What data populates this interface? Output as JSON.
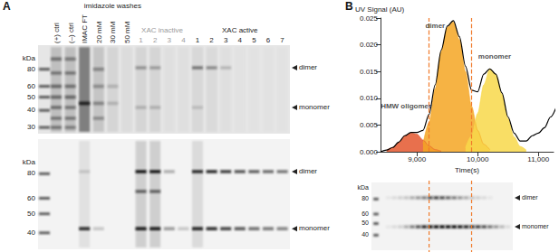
{
  "panels": [
    "A",
    "B"
  ],
  "gel_A": {
    "kDa_label": "kDa",
    "lanes": [
      "(+) ctrl",
      "(–) ctrl",
      "IMAC FT",
      "20 mM",
      "30 mM",
      "50 mM",
      "1",
      "2",
      "3",
      "4",
      "1",
      "2",
      "3",
      "4",
      "5",
      "6",
      "7"
    ],
    "groups": [
      {
        "label": "imidazole washes",
        "from": 3,
        "to": 5
      },
      {
        "label": "XAC inactive",
        "from": 6,
        "to": 9,
        "color": "#9a9a9a"
      },
      {
        "label": "XAC active",
        "from": 10,
        "to": 16
      }
    ],
    "blots": [
      {
        "kDa_range": [
          120,
          27
        ],
        "markers": [
          80,
          60,
          50,
          40,
          30
        ],
        "arrows": [
          {
            "kDa": 82,
            "label": "dimer"
          },
          {
            "kDa": 42,
            "label": "monomer"
          }
        ],
        "lanes": [
          {
            "smear": 0.35,
            "bands": [
              [
                95,
                0.5
              ],
              [
                75,
                0.45
              ],
              [
                60,
                0.55
              ],
              [
                50,
                0.55
              ],
              [
                42,
                0.5
              ],
              [
                35,
                0.45
              ],
              [
                30,
                0.45
              ]
            ]
          },
          {
            "smear": 0.35,
            "bands": [
              [
                95,
                0.45
              ],
              [
                75,
                0.45
              ],
              [
                60,
                0.5
              ],
              [
                50,
                0.55
              ],
              [
                42,
                0.45
              ],
              [
                35,
                0.45
              ],
              [
                30,
                0.4
              ]
            ]
          },
          {
            "smear": 0.95,
            "bands": [
              [
                45,
                1
              ]
            ]
          },
          {
            "smear": 0.3,
            "bands": [
              [
                80,
                0.4
              ],
              [
                60,
                0.35
              ],
              [
                45,
                0.4
              ],
              [
                35,
                0.35
              ]
            ]
          },
          {
            "smear": 0.15,
            "bands": [
              [
                60,
                0.2
              ],
              [
                45,
                0.2
              ]
            ]
          },
          {
            "smear": 0.08,
            "bands": []
          },
          {
            "smear": 0.15,
            "bands": [
              [
                82,
                0.35
              ],
              [
                42,
                0.2
              ]
            ]
          },
          {
            "smear": 0.15,
            "bands": [
              [
                82,
                0.3
              ],
              [
                42,
                0.2
              ]
            ]
          },
          {
            "smear": 0.05,
            "bands": []
          },
          {
            "smear": 0.05,
            "bands": []
          },
          {
            "smear": 0.12,
            "bands": [
              [
                82,
                0.5
              ],
              [
                42,
                0.15
              ]
            ]
          },
          {
            "smear": 0.1,
            "bands": [
              [
                82,
                0.4
              ]
            ]
          },
          {
            "smear": 0.05,
            "bands": [
              [
                82,
                0.2
              ]
            ]
          },
          {
            "smear": 0.03,
            "bands": []
          },
          {
            "smear": 0.02,
            "bands": []
          },
          {
            "smear": 0.02,
            "bands": []
          },
          {
            "smear": 0.02,
            "bands": []
          }
        ]
      },
      {
        "kDa_range": [
          120,
          33
        ],
        "markers": [
          80,
          60,
          50,
          40
        ],
        "arrows": [
          {
            "kDa": 82,
            "label": "dimer"
          },
          {
            "kDa": 42,
            "label": "monomer"
          }
        ],
        "lanes": [
          {
            "bands": []
          },
          {
            "bands": []
          },
          {
            "smear": 0.15,
            "bands": [
              [
                82,
                0.15
              ],
              [
                42,
                0.9
              ]
            ]
          },
          {
            "bands": [
              [
                42,
                0.2
              ]
            ]
          },
          {
            "bands": []
          },
          {
            "bands": []
          },
          {
            "smear": 0.3,
            "bands": [
              [
                82,
                1
              ],
              [
                65,
                0.6
              ],
              [
                42,
                1
              ]
            ]
          },
          {
            "smear": 0.3,
            "bands": [
              [
                82,
                1
              ],
              [
                65,
                0.6
              ],
              [
                42,
                1
              ]
            ]
          },
          {
            "bands": [
              [
                82,
                0.3
              ],
              [
                42,
                0.4
              ]
            ]
          },
          {
            "bands": [
              [
                42,
                0.2
              ]
            ]
          },
          {
            "smear": 0.2,
            "bands": [
              [
                82,
                0.9
              ],
              [
                42,
                0.95
              ]
            ]
          },
          {
            "bands": [
              [
                82,
                0.9
              ],
              [
                42,
                0.9
              ]
            ]
          },
          {
            "bands": [
              [
                82,
                0.8
              ],
              [
                42,
                0.8
              ]
            ]
          },
          {
            "bands": [
              [
                82,
                0.7
              ],
              [
                42,
                0.7
              ]
            ]
          },
          {
            "bands": [
              [
                82,
                0.65
              ],
              [
                42,
                0.6
              ]
            ]
          },
          {
            "bands": [
              [
                82,
                0.6
              ],
              [
                42,
                0.55
              ]
            ]
          },
          {
            "bands": [
              [
                82,
                0.55
              ],
              [
                42,
                0.5
              ]
            ]
          }
        ]
      }
    ]
  },
  "chart_data": {
    "type": "line",
    "x_label": "Time(s)",
    "y_label": "UV Signal (AU)",
    "xlim": [
      8400,
      11250
    ],
    "xticks": [
      {
        "value": 9000,
        "label": "9,000"
      },
      {
        "value": 10000,
        "label": "10,000"
      },
      {
        "value": 11000,
        "label": "11,000"
      }
    ],
    "ylim": [
      0,
      0.025
    ],
    "yticks": [
      {
        "value": 0,
        "label": "0.000"
      },
      {
        "value": 0.005,
        "label": "0.005"
      },
      {
        "value": 0.01,
        "label": "0.010"
      },
      {
        "value": 0.015,
        "label": "0.015"
      },
      {
        "value": 0.02,
        "label": "0.020"
      },
      0.025
    ],
    "grid": false,
    "series": [
      {
        "type": "area",
        "color": "#e4572e",
        "x": [
          8500,
          8600,
          8700,
          8800,
          8900,
          9000,
          9100,
          9200,
          9300,
          9400
        ],
        "values": [
          0.0003,
          0.0008,
          0.0018,
          0.003,
          0.0035,
          0.0033,
          0.0022,
          0.0011,
          0.0004,
          0.0001
        ]
      },
      {
        "type": "area",
        "color": "#f5a623",
        "x": [
          9100,
          9200,
          9300,
          9400,
          9500,
          9600,
          9700,
          9800,
          9900,
          10000,
          10100,
          10200
        ],
        "values": [
          0.0015,
          0.0055,
          0.0118,
          0.0188,
          0.0233,
          0.0243,
          0.021,
          0.015,
          0.0085,
          0.004,
          0.0014,
          0.0004
        ]
      },
      {
        "type": "area",
        "color": "#f8d84a",
        "x": [
          9800,
          9900,
          10000,
          10100,
          10200,
          10300,
          10400,
          10500,
          10600,
          10700,
          10800
        ],
        "values": [
          0.0008,
          0.003,
          0.0072,
          0.0125,
          0.0155,
          0.0145,
          0.0108,
          0.0062,
          0.0028,
          0.001,
          0.0003
        ]
      },
      {
        "type": "line",
        "color": "#000000",
        "x": [
          8400,
          8500,
          8600,
          8700,
          8800,
          8900,
          9000,
          9100,
          9200,
          9300,
          9400,
          9500,
          9600,
          9700,
          9800,
          9900,
          10000,
          10100,
          10200,
          10300,
          10400,
          10500,
          10600,
          10700,
          10800,
          10900,
          11000,
          11100,
          11200,
          11300
        ],
        "values": [
          0,
          0.0003,
          0.0008,
          0.0018,
          0.003,
          0.0036,
          0.0036,
          0.004,
          0.007,
          0.0125,
          0.019,
          0.0235,
          0.0245,
          0.0215,
          0.016,
          0.0115,
          0.0112,
          0.0145,
          0.0155,
          0.0145,
          0.011,
          0.0065,
          0.0035,
          0.002,
          0.002,
          0.003,
          0.0035,
          0.0045,
          0.0065,
          0.0085
        ]
      }
    ],
    "annotations": [
      {
        "text": "HMW oligomer",
        "x": 8820,
        "y": 0.0085
      },
      {
        "text": "dimer",
        "x": 9300,
        "y": 0.0235
      },
      {
        "text": "monomer",
        "x": 10280,
        "y": 0.0178
      }
    ],
    "vlines": [
      {
        "x": 9200,
        "color": "#f07a2a",
        "line_style": "dashed"
      },
      {
        "x": 9900,
        "color": "#f07a2a",
        "line_style": "dashed"
      }
    ]
  },
  "gel_B": {
    "kDa_label": "kDa",
    "kDa_range": [
      110,
      30
    ],
    "markers": [
      80,
      60,
      50,
      40
    ],
    "arrows": [
      {
        "kDa": 82,
        "label": "dimer"
      },
      {
        "kDa": 47,
        "label": "monomer"
      }
    ],
    "lanes": [
      {
        "bands": []
      },
      {
        "bands": [
          [
            82,
            0.05
          ],
          [
            47,
            0.05
          ]
        ]
      },
      {
        "bands": [
          [
            82,
            0.1
          ],
          [
            47,
            0.1
          ]
        ]
      },
      {
        "bands": [
          [
            82,
            0.15
          ],
          [
            47,
            0.15
          ]
        ]
      },
      {
        "bands": [
          [
            82,
            0.2
          ],
          [
            47,
            0.3
          ]
        ]
      },
      {
        "bands": [
          [
            82,
            0.3
          ],
          [
            47,
            0.5
          ]
        ]
      },
      {
        "bands": [
          [
            82,
            0.4
          ],
          [
            47,
            0.7
          ]
        ]
      },
      {
        "bands": [
          [
            82,
            0.5
          ],
          [
            47,
            0.9
          ]
        ]
      },
      {
        "bands": [
          [
            82,
            0.7
          ],
          [
            47,
            1
          ]
        ]
      },
      {
        "bands": [
          [
            82,
            0.75
          ],
          [
            47,
            1
          ]
        ]
      },
      {
        "bands": [
          [
            82,
            0.7
          ],
          [
            47,
            1
          ]
        ]
      },
      {
        "bands": [
          [
            82,
            0.6
          ],
          [
            47,
            1
          ]
        ]
      },
      {
        "bands": [
          [
            82,
            0.5
          ],
          [
            47,
            1
          ]
        ]
      },
      {
        "bands": [
          [
            82,
            0.4
          ],
          [
            47,
            0.95
          ]
        ]
      },
      {
        "bands": [
          [
            82,
            0.3
          ],
          [
            47,
            0.9
          ]
        ]
      },
      {
        "bands": [
          [
            82,
            0.2
          ],
          [
            47,
            0.85
          ]
        ]
      },
      {
        "bands": [
          [
            82,
            0.15
          ],
          [
            47,
            0.8
          ]
        ]
      },
      {
        "bands": [
          [
            82,
            0.1
          ],
          [
            47,
            0.7
          ]
        ]
      },
      {
        "bands": [
          [
            82,
            0.05
          ],
          [
            47,
            0.55
          ]
        ]
      },
      {
        "bands": [
          [
            47,
            0.4
          ]
        ]
      },
      {
        "bands": [
          [
            47,
            0.25
          ]
        ]
      },
      {
        "bands": [
          [
            47,
            0.1
          ]
        ]
      }
    ]
  }
}
